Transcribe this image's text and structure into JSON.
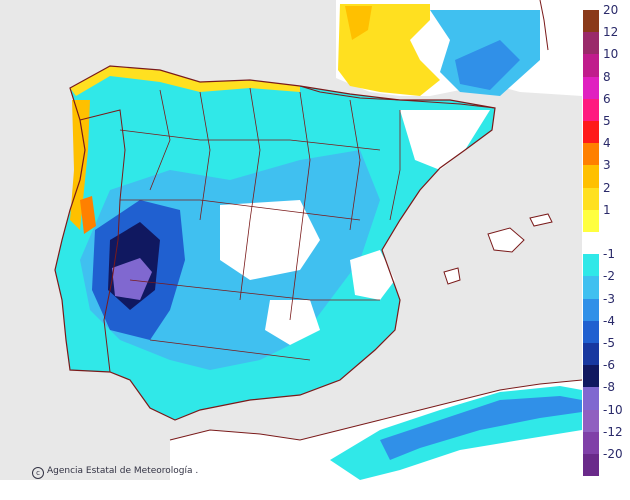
{
  "map": {
    "credit_text": "Agencia Estatal de Meteorología .",
    "credit_icon": "copyright-icon",
    "colors": {
      "sea": "#e8e8e8",
      "land_neutral": "#ffffff",
      "border": "#7a1a1a"
    }
  },
  "legend": {
    "entries": [
      {
        "label": "20",
        "color": "#8a3a1a"
      },
      {
        "label": "12",
        "color": "#9a2a6a"
      },
      {
        "label": "10",
        "color": "#c01c8c"
      },
      {
        "label": "8",
        "color": "#e020c0"
      },
      {
        "label": "6",
        "color": "#ff1a80"
      },
      {
        "label": "5",
        "color": "#ff1a1a"
      },
      {
        "label": "4",
        "color": "#ff8000"
      },
      {
        "label": "3",
        "color": "#ffc000"
      },
      {
        "label": "2",
        "color": "#ffe020"
      },
      {
        "label": "1",
        "color": "#ffff40"
      },
      {
        "label": "",
        "color": "#ffffff"
      },
      {
        "label": "-1",
        "color": "#30e8e8"
      },
      {
        "label": "-2",
        "color": "#40c0f0"
      },
      {
        "label": "-3",
        "color": "#3090e8"
      },
      {
        "label": "-4",
        "color": "#2060d0"
      },
      {
        "label": "-5",
        "color": "#1838a0"
      },
      {
        "label": "-6",
        "color": "#101860"
      },
      {
        "label": "-8",
        "color": "#8068d0"
      },
      {
        "label": "-10",
        "color": "#9060c0"
      },
      {
        "label": "-12",
        "color": "#8040a8"
      },
      {
        "label": "-20",
        "color": "#6a2a8a"
      }
    ]
  }
}
